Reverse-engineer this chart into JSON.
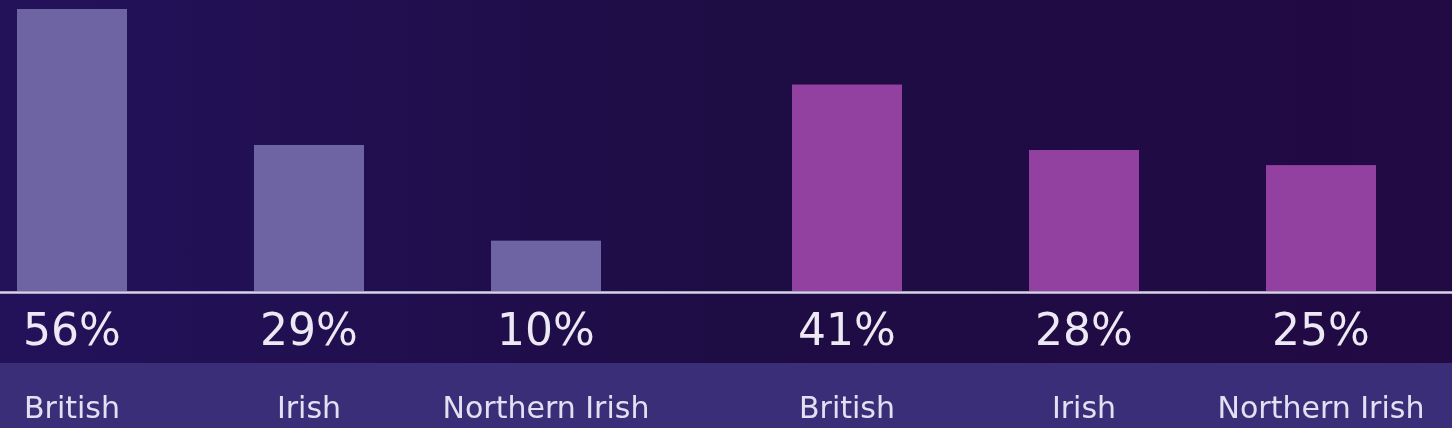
{
  "chart_data": [
    {
      "type": "bar",
      "categories": [
        "British",
        "Irish",
        "Northern Irish"
      ],
      "values": [
        56,
        29,
        10
      ],
      "color": "#6f64a3",
      "value_labels": [
        "56%",
        "29%",
        "10%"
      ]
    },
    {
      "type": "bar",
      "categories": [
        "British",
        "Irish",
        "Northern Irish"
      ],
      "values": [
        41,
        28,
        25
      ],
      "color": "#9341a0",
      "value_labels": [
        "41%",
        "28%",
        "25%"
      ]
    }
  ]
}
